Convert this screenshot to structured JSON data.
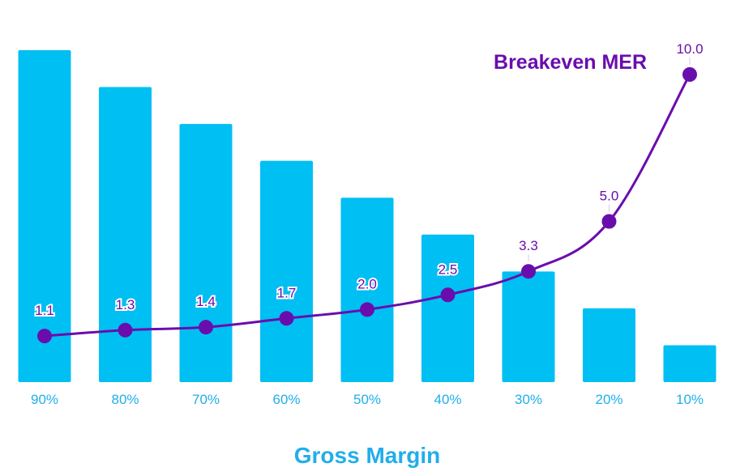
{
  "chart_data": {
    "type": "bar+line",
    "categories": [
      "90%",
      "80%",
      "70%",
      "60%",
      "50%",
      "40%",
      "30%",
      "20%",
      "10%"
    ],
    "bar_values": [
      90,
      80,
      70,
      60,
      50,
      40,
      30,
      20,
      10
    ],
    "line_series": {
      "name": "Breakeven MER",
      "values": [
        1.1,
        1.3,
        1.4,
        1.7,
        2.0,
        2.5,
        3.3,
        5.0,
        10.0
      ],
      "labels": [
        "1.1",
        "1.3",
        "1.4",
        "1.7",
        "2.0",
        "2.5",
        "3.3",
        "5.0",
        "10.0"
      ]
    },
    "xlabel": "Gross Margin",
    "bar_ylim": [
      0,
      90
    ],
    "line_ylim": [
      0,
      10
    ],
    "grid": false,
    "colors": {
      "bar": "#00BFF3",
      "line": "#6A0DAD",
      "xlabel": "#21AEEA",
      "ticks": "#21AEEA"
    }
  }
}
